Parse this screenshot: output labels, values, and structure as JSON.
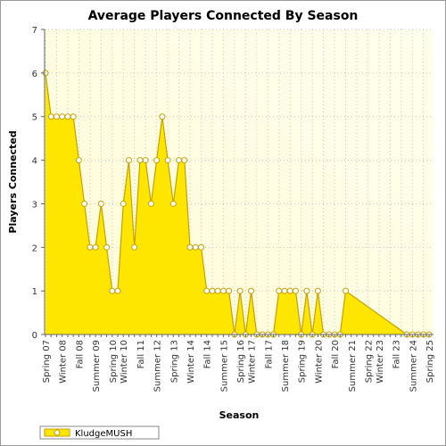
{
  "chart_data": {
    "type": "area",
    "title": "Average Players Connected By Season",
    "xlabel": "Season",
    "ylabel": "Players Connected",
    "ylim": [
      0,
      7
    ],
    "yticks": [
      0,
      1,
      2,
      3,
      4,
      5,
      6,
      7
    ],
    "grid": true,
    "legend_position": "bottom-left",
    "x_tick_labels": [
      "Spring 07",
      "Winter 08",
      "Fall 08",
      "Summer 09",
      "Spring 10",
      "Winter 10",
      "Fall 11",
      "Summer 12",
      "Spring 13",
      "Winter 14",
      "Fall 14",
      "Summer 15",
      "Spring 16",
      "Winter 17",
      "Fall 17",
      "Summer 18",
      "Spring 19",
      "Winter 20",
      "Fall 20",
      "Summer 21",
      "Spring 22",
      "Winter 23",
      "Fall 23",
      "Summer 24",
      "Spring 25"
    ],
    "series": [
      {
        "name": "KludgeMUSH",
        "color": "#ffe600",
        "line_color": "#c8a000",
        "values": [
          6,
          5,
          5,
          5,
          5,
          5,
          4,
          3,
          2,
          2,
          3,
          2,
          1,
          1,
          3,
          4,
          2,
          4,
          4,
          3,
          4,
          5,
          4,
          3,
          4,
          4,
          2,
          2,
          2,
          1,
          1,
          1,
          1,
          1,
          0,
          1,
          0,
          1,
          0,
          0,
          0,
          0,
          1,
          1,
          1,
          1,
          0,
          1,
          0,
          1,
          0,
          0,
          0,
          0,
          1,
          null,
          null,
          null,
          null,
          null,
          null,
          null,
          null,
          null,
          null,
          0,
          0,
          0,
          0,
          0
        ]
      }
    ]
  },
  "colors": {
    "plot_gradient_start": "#fffcd6",
    "plot_gradient_end": "#ffffee",
    "marker_fill": "#ffffff",
    "gridline": "#c8c8c8"
  }
}
